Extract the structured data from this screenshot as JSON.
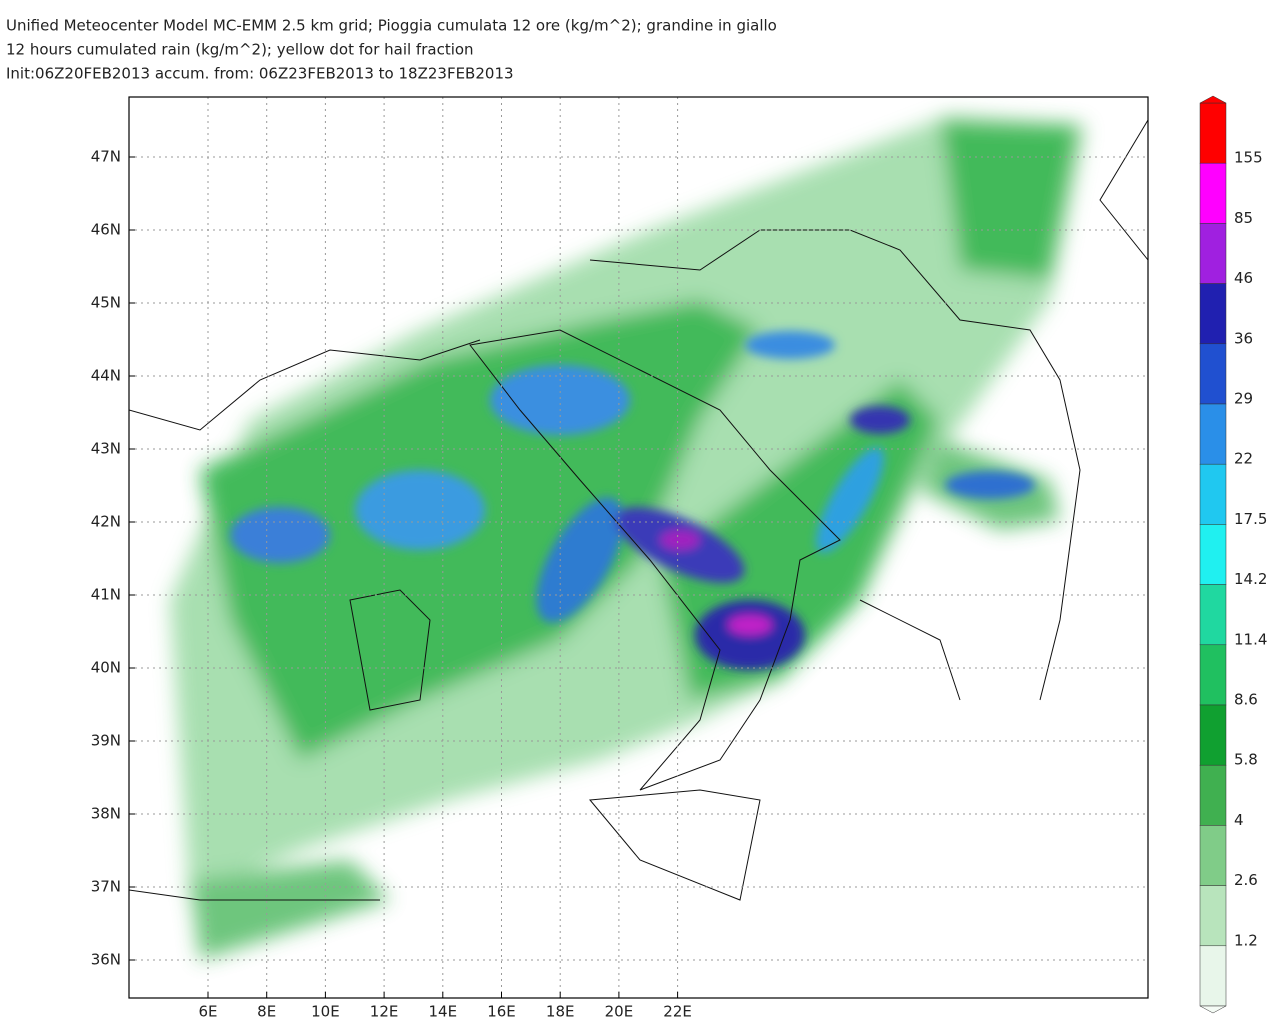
{
  "header": {
    "lines": [
      "Unified Meteocenter Model MC-EMM 2.5 km grid; Pioggia cumulata 12 ore (kg/m^2); grandine in giallo",
      "12 hours cumulated rain (kg/m^2); yellow dot for hail fraction",
      "Init:06Z20FEB2013 accum. from: 06Z23FEB2013 to 18Z23FEB2013"
    ]
  },
  "map": {
    "lon_labels": [
      "6E",
      "8E",
      "10E",
      "12E",
      "14E",
      "16E",
      "18E",
      "20E",
      "22E"
    ],
    "lat_labels": [
      "47N",
      "46N",
      "45N",
      "44N",
      "43N",
      "42N",
      "41N",
      "40N",
      "39N",
      "38N",
      "37N",
      "36N"
    ]
  },
  "colorbar": {
    "labels": [
      "155",
      "85",
      "46",
      "36",
      "29",
      "22",
      "17.5",
      "14.2",
      "11.4",
      "8.6",
      "5.8",
      "4",
      "2.6",
      "1.2"
    ]
  }
}
